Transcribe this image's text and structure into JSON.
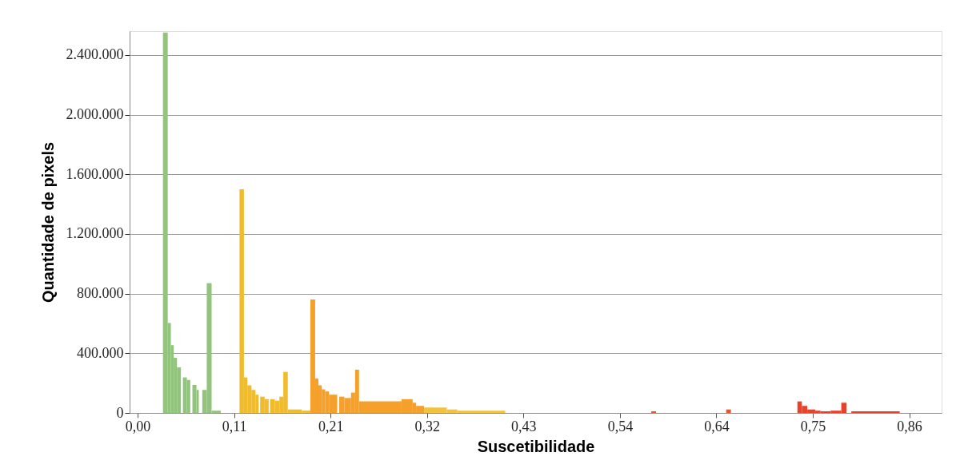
{
  "chart_data": {
    "type": "histogram",
    "xlabel": "Suscetibilidade",
    "ylabel": "Quantidade de pixels",
    "bins": [
      0.0282,
      0.0335,
      0.037,
      0.0402,
      0.0438,
      0.0482,
      0.0504,
      0.0548,
      0.0586,
      0.061,
      0.0655,
      0.0681,
      0.072,
      0.077,
      0.0824,
      0.0927,
      0.1135,
      0.1184,
      0.1223,
      0.1268,
      0.1312,
      0.1348,
      0.1365,
      0.1415,
      0.146,
      0.1475,
      0.1528,
      0.1579,
      0.1623,
      0.1673,
      0.183,
      0.1925,
      0.1978,
      0.2014,
      0.2052,
      0.209,
      0.2132,
      0.2224,
      0.2245,
      0.2304,
      0.2378,
      0.2423,
      0.2467,
      0.2941,
      0.3065,
      0.3103,
      0.3192,
      0.3444,
      0.3563,
      0.4096,
      0.5724,
      0.5777,
      0.6559,
      0.6612,
      0.7353,
      0.7403,
      0.7463,
      0.7552,
      0.7611,
      0.7723,
      0.7842,
      0.7901,
      0.7954,
      0.8493
    ],
    "values": [
      2550000,
      603000,
      454000,
      370000,
      305000,
      0,
      238000,
      221000,
      0,
      188000,
      154000,
      0,
      154000,
      870000,
      15000,
      0,
      1500000,
      238000,
      185000,
      154000,
      122000,
      0,
      109000,
      92000,
      0,
      92000,
      82000,
      109000,
      275000,
      23000,
      15000,
      760000,
      230000,
      185000,
      158000,
      144000,
      122000,
      0,
      109000,
      100000,
      136000,
      290000,
      77000,
      92000,
      68000,
      47000,
      36000,
      23000,
      15000,
      0,
      11000,
      0,
      23000,
      0,
      77000,
      47000,
      23000,
      15000,
      11000,
      15000,
      68000,
      0,
      11000
    ],
    "colors": [
      "#93c47d",
      "#93c47d",
      "#93c47d",
      "#93c47d",
      "#93c47d",
      "#93c47d",
      "#93c47d",
      "#93c47d",
      "#93c47d",
      "#93c47d",
      "#93c47d",
      "#93c47d",
      "#93c47d",
      "#93c47d",
      "#93c47d",
      "#93c47d",
      "#f0bc2c",
      "#f0bc2c",
      "#f0bc2c",
      "#f0bc2c",
      "#f0bc2c",
      "#f0bc2c",
      "#f0bc2c",
      "#f0bc2c",
      "#f0bc2c",
      "#f0bc2c",
      "#f0bc2c",
      "#f0bc2c",
      "#f0bc2c",
      "#f0bc2c",
      "#f0bc2c",
      "#f5a02a",
      "#f5a02a",
      "#f5a02a",
      "#f5a02a",
      "#f5a02a",
      "#f5a02a",
      "#f5a02a",
      "#f5a02a",
      "#f5a02a",
      "#f5a02a",
      "#f5a02a",
      "#f5a02a",
      "#f5a02a",
      "#f5a02a",
      "#f5a02a",
      "#f2c23c",
      "#f2c23c",
      "#f2c23c",
      "#f2c23c",
      "#e9562e",
      "#e9562e",
      "#e9562e",
      "#e9562e",
      "#e8432a",
      "#e8432a",
      "#e8432a",
      "#e8432a",
      "#e8432a",
      "#e8432a",
      "#e8432a",
      "#e8432a",
      "#e8432a"
    ],
    "xlim": [
      -0.009,
      0.896
    ],
    "ylim": [
      0,
      2560000
    ],
    "xticks": [
      {
        "value": 0,
        "label": "0,00"
      },
      {
        "value": 0.1075,
        "label": "0,11"
      },
      {
        "value": 0.215,
        "label": "0,21"
      },
      {
        "value": 0.3225,
        "label": "0,32"
      },
      {
        "value": 0.43,
        "label": "0,43"
      },
      {
        "value": 0.5375,
        "label": "0,54"
      },
      {
        "value": 0.645,
        "label": "0,64"
      },
      {
        "value": 0.7525,
        "label": "0,75"
      },
      {
        "value": 0.86,
        "label": "0,86"
      }
    ],
    "yticks": [
      0,
      {
        "value": 400000,
        "label": "400.000"
      },
      {
        "value": 800000,
        "label": "800.000"
      },
      {
        "value": 1200000,
        "label": "1.200.000"
      },
      {
        "value": 1600000,
        "label": "1.600.000"
      },
      {
        "value": 2000000,
        "label": "2.000.000"
      },
      {
        "value": 2400000,
        "label": "2.400.000"
      }
    ],
    "grid": "y"
  }
}
